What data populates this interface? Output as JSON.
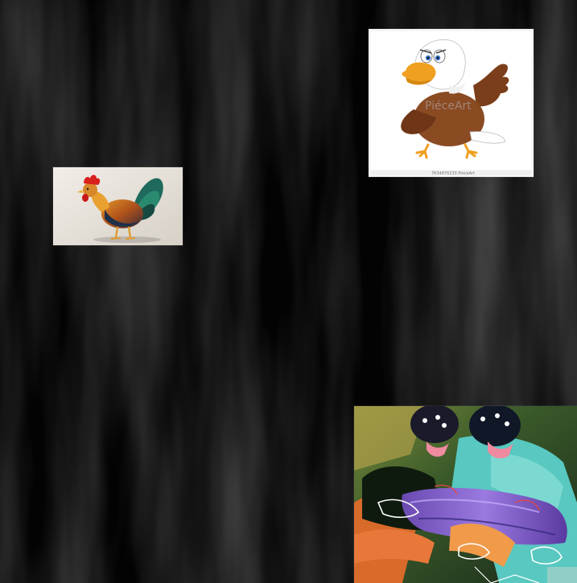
{
  "scene": {
    "background": "dark streaked wood-grain texture",
    "background_color": "#050505"
  },
  "images": {
    "rooster": {
      "name": "rooster-photo",
      "subject": "colorful rooster"
    },
    "eagle": {
      "name": "eagle-cartoon",
      "subject": "cartoon bald eagle",
      "watermark": "PiéceArt",
      "caption": "7634876233 PieceArt"
    },
    "collage": {
      "name": "psychedelic-collage",
      "subject": "color-inverted collage of figures"
    }
  },
  "colors": {
    "rooster_comb": "#d8201c",
    "rooster_tail": "#1e6a5c",
    "eagle_body": "#8a4a22",
    "eagle_beak": "#f0a020",
    "collage_purple": "#8a6ad0",
    "collage_teal": "#58c8c0"
  }
}
